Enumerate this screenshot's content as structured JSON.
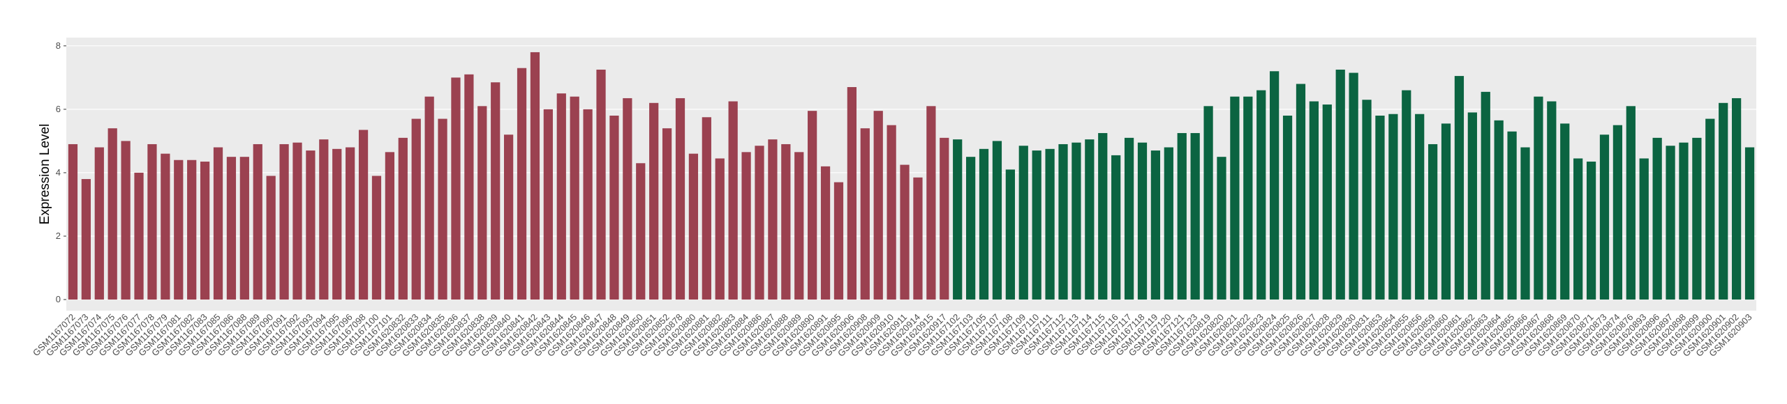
{
  "chart_data": {
    "type": "bar",
    "y_label": "Expression Level",
    "categories": [
      "GSM1167072",
      "GSM1167073",
      "GSM1167074",
      "GSM1167075",
      "GSM1167076",
      "GSM1167077",
      "GSM1167078",
      "GSM1167079",
      "GSM1167081",
      "GSM1167082",
      "GSM1167083",
      "GSM1167085",
      "GSM1167086",
      "GSM1167088",
      "GSM1167089",
      "GSM1167090",
      "GSM1167091",
      "GSM1167092",
      "GSM1167093",
      "GSM1167094",
      "GSM1167095",
      "GSM1167096",
      "GSM1167098",
      "GSM1167100",
      "GSM1167101",
      "GSM1620832",
      "GSM1620833",
      "GSM1620834",
      "GSM1620835",
      "GSM1620836",
      "GSM1620837",
      "GSM1620838",
      "GSM1620839",
      "GSM1620840",
      "GSM1620841",
      "GSM1620842",
      "GSM1620843",
      "GSM1620844",
      "GSM1620845",
      "GSM1620846",
      "GSM1620847",
      "GSM1620848",
      "GSM1620849",
      "GSM1620850",
      "GSM1620851",
      "GSM1620852",
      "GSM1620878",
      "GSM1620880",
      "GSM1620881",
      "GSM1620882",
      "GSM1620883",
      "GSM1620884",
      "GSM1620886",
      "GSM1620887",
      "GSM1620888",
      "GSM1620889",
      "GSM1620890",
      "GSM1620891",
      "GSM1620895",
      "GSM1620906",
      "GSM1620908",
      "GSM1620909",
      "GSM1620910",
      "GSM1620911",
      "GSM1620914",
      "GSM1620915",
      "GSM1620917",
      "GSM1167102",
      "GSM1167103",
      "GSM1167105",
      "GSM1167107",
      "GSM1167108",
      "GSM1167109",
      "GSM1167110",
      "GSM1167111",
      "GSM1167112",
      "GSM1167113",
      "GSM1167114",
      "GSM1167115",
      "GSM1167116",
      "GSM1167117",
      "GSM1167118",
      "GSM1167119",
      "GSM1167120",
      "GSM1167121",
      "GSM1167123",
      "GSM1620819",
      "GSM1620820",
      "GSM1620821",
      "GSM1620822",
      "GSM1620823",
      "GSM1620824",
      "GSM1620825",
      "GSM1620826",
      "GSM1620827",
      "GSM1620828",
      "GSM1620829",
      "GSM1620830",
      "GSM1620831",
      "GSM1620853",
      "GSM1620854",
      "GSM1620855",
      "GSM1620856",
      "GSM1620859",
      "GSM1620860",
      "GSM1620861",
      "GSM1620862",
      "GSM1620863",
      "GSM1620864",
      "GSM1620865",
      "GSM1620866",
      "GSM1620867",
      "GSM1620868",
      "GSM1620869",
      "GSM1620870",
      "GSM1620871",
      "GSM1620873",
      "GSM1620874",
      "GSM1620876",
      "GSM1620893",
      "GSM1620896",
      "GSM1620897",
      "GSM1620898",
      "GSM1620899",
      "GSM1620900",
      "GSM1620901",
      "GSM1620902",
      "GSM1620903"
    ],
    "values": [
      4.9,
      3.8,
      4.8,
      5.4,
      5.0,
      4.0,
      4.9,
      4.6,
      4.4,
      4.4,
      4.35,
      4.8,
      4.5,
      4.5,
      4.9,
      3.9,
      4.9,
      4.95,
      4.7,
      5.05,
      4.75,
      4.8,
      5.35,
      3.9,
      4.65,
      5.1,
      5.7,
      6.4,
      5.7,
      7.0,
      7.1,
      6.1,
      6.85,
      5.2,
      7.3,
      7.8,
      6.0,
      6.5,
      6.4,
      6.0,
      7.25,
      5.8,
      6.35,
      4.3,
      6.2,
      5.4,
      6.35,
      4.6,
      5.75,
      4.45,
      6.25,
      4.65,
      4.85,
      5.05,
      4.9,
      4.65,
      5.95,
      4.2,
      3.7,
      6.7,
      5.4,
      5.95,
      5.5,
      4.25,
      3.85,
      6.1,
      5.1,
      5.05,
      4.5,
      4.75,
      5.0,
      4.1,
      4.85,
      4.7,
      4.75,
      4.9,
      4.95,
      5.05,
      5.25,
      4.55,
      5.1,
      4.95,
      4.7,
      4.8,
      5.25,
      5.25,
      6.1,
      4.5,
      6.4,
      6.4,
      6.6,
      7.2,
      5.8,
      6.8,
      6.25,
      6.15,
      7.25,
      7.15,
      6.3,
      5.8,
      5.85,
      6.6,
      5.85,
      4.9,
      5.55,
      7.05,
      5.9,
      6.55,
      5.65,
      5.3,
      4.8,
      6.4,
      6.25,
      5.55,
      4.45,
      4.35,
      5.2,
      5.5,
      6.1,
      4.45,
      5.1,
      4.85,
      4.95,
      5.1,
      5.7,
      6.2,
      6.35,
      4.8
    ],
    "colors": [
      "#9b4150",
      "#9b4150",
      "#9b4150",
      "#9b4150",
      "#9b4150",
      "#9b4150",
      "#9b4150",
      "#9b4150",
      "#9b4150",
      "#9b4150",
      "#9b4150",
      "#9b4150",
      "#9b4150",
      "#9b4150",
      "#9b4150",
      "#9b4150",
      "#9b4150",
      "#9b4150",
      "#9b4150",
      "#9b4150",
      "#9b4150",
      "#9b4150",
      "#9b4150",
      "#9b4150",
      "#9b4150",
      "#9b4150",
      "#9b4150",
      "#9b4150",
      "#9b4150",
      "#9b4150",
      "#9b4150",
      "#9b4150",
      "#9b4150",
      "#9b4150",
      "#9b4150",
      "#9b4150",
      "#9b4150",
      "#9b4150",
      "#9b4150",
      "#9b4150",
      "#9b4150",
      "#9b4150",
      "#9b4150",
      "#9b4150",
      "#9b4150",
      "#9b4150",
      "#9b4150",
      "#9b4150",
      "#9b4150",
      "#9b4150",
      "#9b4150",
      "#9b4150",
      "#9b4150",
      "#9b4150",
      "#9b4150",
      "#9b4150",
      "#9b4150",
      "#9b4150",
      "#9b4150",
      "#9b4150",
      "#9b4150",
      "#9b4150",
      "#9b4150",
      "#9b4150",
      "#9b4150",
      "#9b4150",
      "#9b4150",
      "#0b6441",
      "#0b6441",
      "#0b6441",
      "#0b6441",
      "#0b6441",
      "#0b6441",
      "#0b6441",
      "#0b6441",
      "#0b6441",
      "#0b6441",
      "#0b6441",
      "#0b6441",
      "#0b6441",
      "#0b6441",
      "#0b6441",
      "#0b6441",
      "#0b6441",
      "#0b6441",
      "#0b6441",
      "#0b6441",
      "#0b6441",
      "#0b6441",
      "#0b6441",
      "#0b6441",
      "#0b6441",
      "#0b6441",
      "#0b6441",
      "#0b6441",
      "#0b6441",
      "#0b6441",
      "#0b6441",
      "#0b6441",
      "#0b6441",
      "#0b6441",
      "#0b6441",
      "#0b6441",
      "#0b6441",
      "#0b6441",
      "#0b6441",
      "#0b6441",
      "#0b6441",
      "#0b6441",
      "#0b6441",
      "#0b6441",
      "#0b6441",
      "#0b6441",
      "#0b6441",
      "#0b6441",
      "#0b6441",
      "#0b6441",
      "#0b6441",
      "#0b6441",
      "#0b6441",
      "#0b6441",
      "#0b6441",
      "#0b6441",
      "#0b6441",
      "#0b6441",
      "#0b6441",
      "#0b6441",
      "#0b6441"
    ],
    "ylim": [
      -0.35,
      8.26
    ],
    "yticks": [
      0,
      2,
      4,
      6,
      8
    ],
    "grid": true
  }
}
